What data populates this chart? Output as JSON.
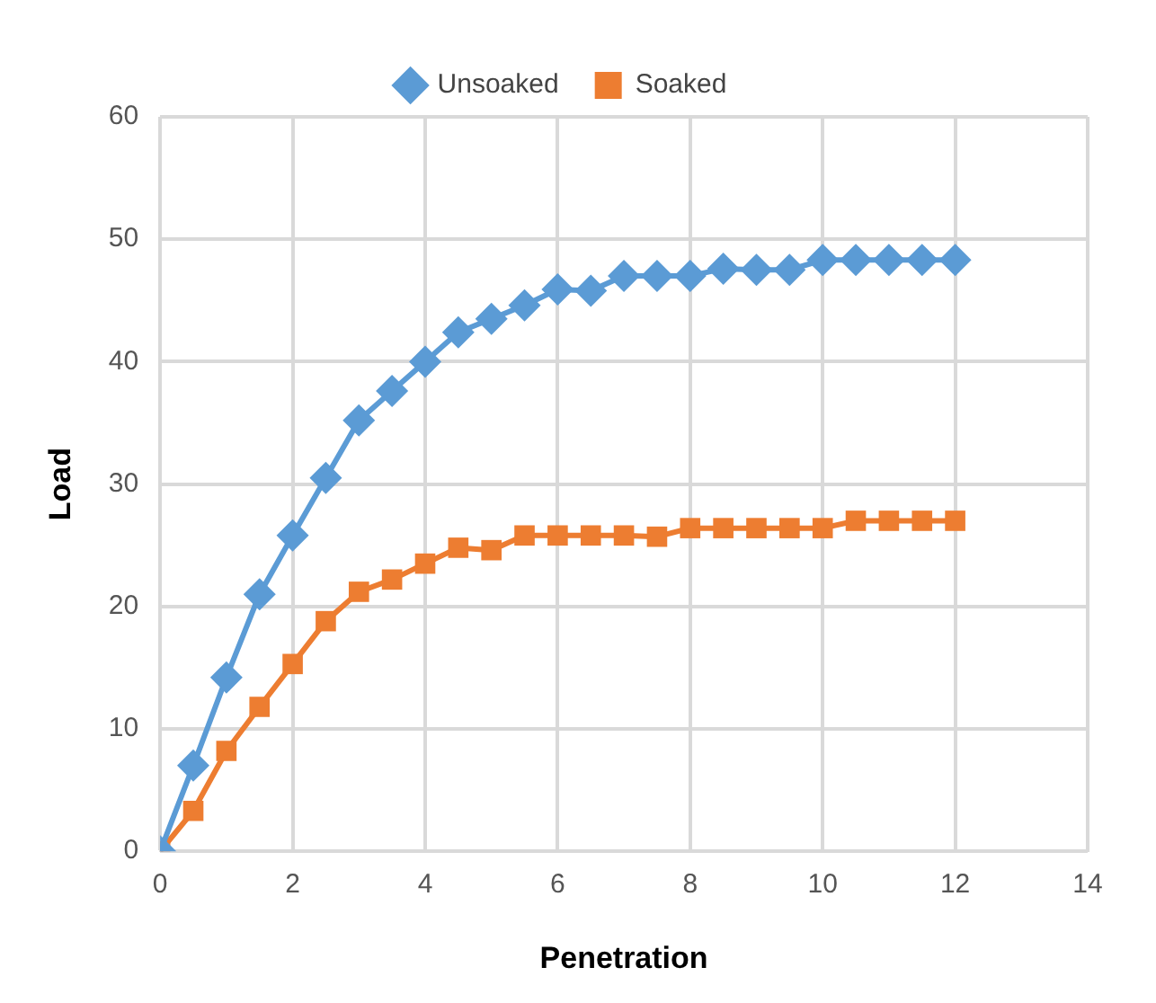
{
  "chart_data": {
    "type": "line",
    "xlabel": "Penetration",
    "ylabel": "Load",
    "x": [
      0,
      0.5,
      1,
      1.5,
      2,
      2.5,
      3,
      3.5,
      4,
      4.5,
      5,
      5.5,
      6,
      6.5,
      7,
      7.5,
      8,
      8.5,
      9,
      9.5,
      10,
      10.5,
      11,
      11.5,
      12
    ],
    "series": [
      {
        "name": "Unsoaked",
        "color": "#5b9bd5",
        "marker": "diamond",
        "values": [
          0,
          7,
          14.2,
          21,
          25.8,
          30.5,
          35.2,
          37.6,
          40,
          42.4,
          43.5,
          44.6,
          45.9,
          45.8,
          47,
          47,
          47,
          47.6,
          47.5,
          47.5,
          48.3,
          48.3,
          48.3,
          48.3,
          48.3
        ]
      },
      {
        "name": "Soaked",
        "color": "#ed7d31",
        "marker": "square",
        "values": [
          0,
          3.3,
          8.2,
          11.8,
          15.3,
          18.8,
          21.2,
          22.2,
          23.5,
          24.8,
          24.6,
          25.8,
          25.8,
          25.8,
          25.8,
          25.7,
          26.4,
          26.4,
          26.4,
          26.4,
          26.4,
          27,
          27,
          27,
          27
        ]
      }
    ],
    "xlim": [
      0,
      14
    ],
    "xticks": [
      0,
      2,
      4,
      6,
      8,
      10,
      12,
      14
    ],
    "ylim": [
      0,
      60
    ],
    "yticks": [
      0,
      10,
      20,
      30,
      40,
      50,
      60
    ],
    "grid": true,
    "legend": "top"
  }
}
